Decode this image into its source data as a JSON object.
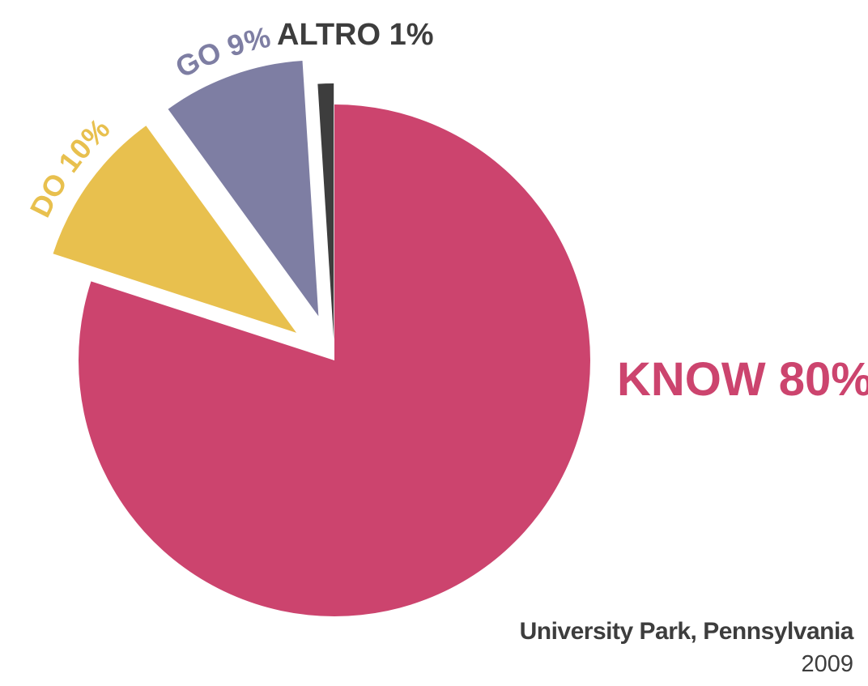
{
  "chart_data": {
    "type": "pie",
    "title": "",
    "slices": [
      {
        "label": "KNOW 80%",
        "value": 80,
        "color": "#cc446e"
      },
      {
        "label": "DO 10%",
        "value": 10,
        "color": "#e8c04e"
      },
      {
        "label": "GO 9%",
        "value": 9,
        "color": "#7e7ea3"
      },
      {
        "label": "ALTRO 1%",
        "value": 1,
        "color": "#3d3d3d"
      }
    ],
    "legend": "none"
  },
  "caption": {
    "location": "University Park, Pennsylvania",
    "year": "2009"
  }
}
